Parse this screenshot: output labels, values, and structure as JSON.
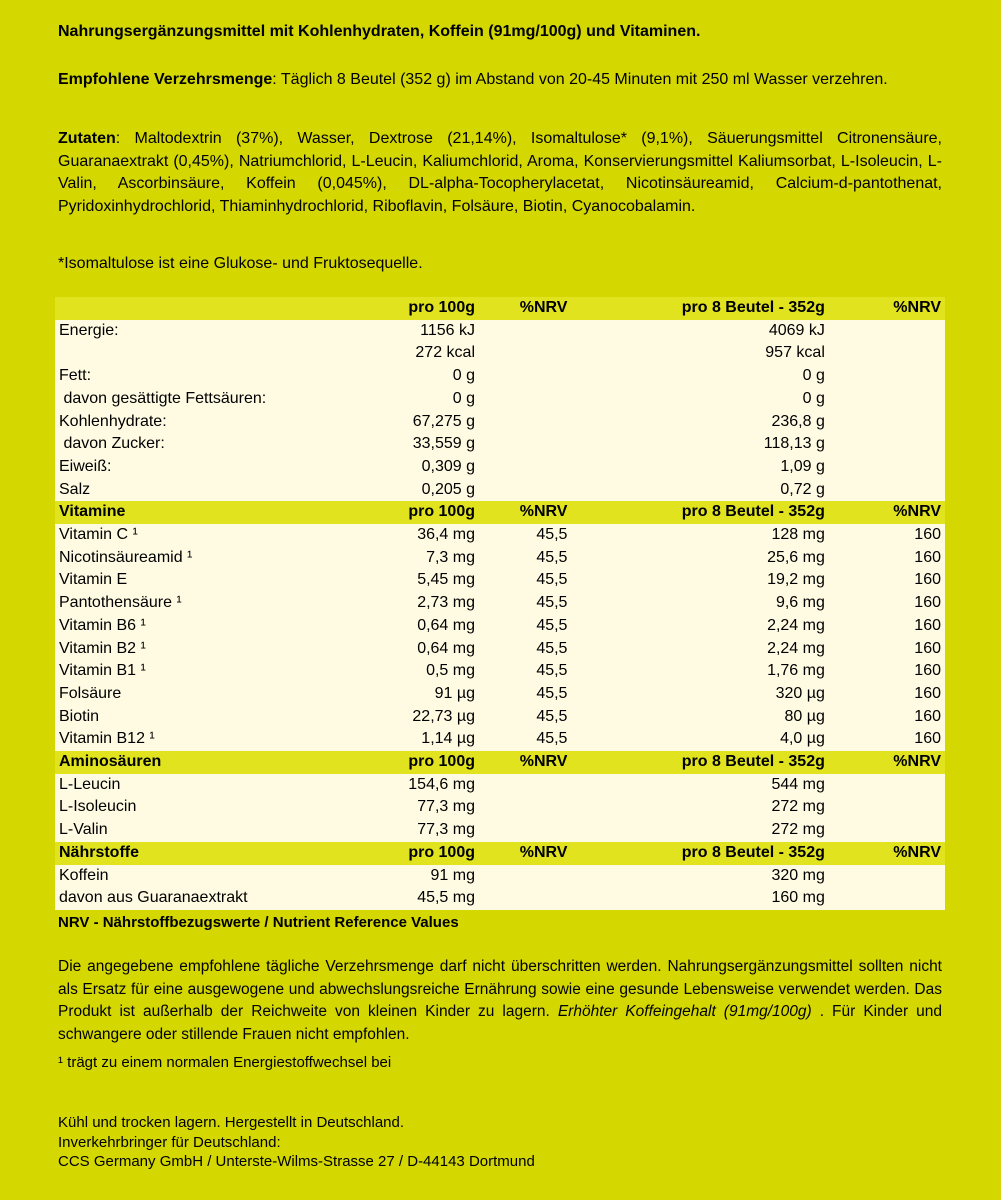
{
  "title": "Nahrungsergänzungsmittel mit Kohlenhydraten, Koffein (91mg/100g) und Vitaminen.",
  "dosage": {
    "label": "Empfohlene Verzehrsmenge",
    "text": ": Täglich 8 Beutel (352 g) im Abstand von 20-45 Minuten mit 250 ml Wasser verzehren."
  },
  "ingredients": {
    "label": "Zutaten",
    "text": ": Maltodextrin (37%), Wasser, Dextrose (21,14%), Isomaltulose* (9,1%), Säuerungsmittel Citronensäure, Guaranaextrakt (0,45%), Natriumchlorid, L-Leucin, Kaliumchlorid, Aroma, Konservierungsmittel Kaliumsorbat, L-Isoleucin, L-Valin, Ascorbinsäure, Koffein (0,045%), DL-alpha-Tocopherylacetat, Nicotinsäureamid, Calcium-d-pantothenat, Pyridoxinhydrochlorid, Thiaminhydrochlorid, Riboflavin, Folsäure, Biotin, Cyanocobalamin."
  },
  "footnote_isomaltulose": "*Isomaltulose ist eine Glukose- und Fruktosequelle.",
  "table": {
    "sections": [
      {
        "header": [
          "",
          "pro 100g",
          "%NRV",
          "pro 8 Beutel - 352g",
          "%NRV"
        ],
        "rows": [
          [
            "Energie:",
            "1156 kJ",
            "",
            "4069 kJ",
            ""
          ],
          [
            "",
            "272 kcal",
            "",
            "957 kcal",
            ""
          ],
          [
            "Fett:",
            "0 g",
            "",
            "0 g",
            ""
          ],
          [
            " davon gesättigte Fettsäuren:",
            "0 g",
            "",
            "0 g",
            ""
          ],
          [
            "Kohlenhydrate:",
            "67,275 g",
            "",
            "236,8 g",
            ""
          ],
          [
            " davon Zucker:",
            "33,559 g",
            "",
            "118,13 g",
            ""
          ],
          [
            "Eiweiß:",
            "0,309 g",
            "",
            "1,09 g",
            ""
          ],
          [
            "Salz",
            "0,205 g",
            "",
            "0,72 g",
            ""
          ]
        ]
      },
      {
        "header": [
          "Vitamine",
          "pro 100g",
          "%NRV",
          "pro 8 Beutel - 352g",
          "%NRV"
        ],
        "rows": [
          [
            "Vitamin C ¹",
            "36,4 mg",
            "45,5",
            "128 mg",
            "160"
          ],
          [
            "Nicotinsäureamid ¹",
            "7,3 mg",
            "45,5",
            "25,6 mg",
            "160"
          ],
          [
            "Vitamin E",
            "5,45 mg",
            "45,5",
            "19,2 mg",
            "160"
          ],
          [
            "Pantothensäure ¹",
            "2,73 mg",
            "45,5",
            "9,6 mg",
            "160"
          ],
          [
            "Vitamin B6 ¹",
            "0,64 mg",
            "45,5",
            "2,24 mg",
            "160"
          ],
          [
            "Vitamin B2 ¹",
            "0,64 mg",
            "45,5",
            "2,24 mg",
            "160"
          ],
          [
            "Vitamin B1 ¹",
            "0,5 mg",
            "45,5",
            "1,76 mg",
            "160"
          ],
          [
            "Folsäure",
            "91 µg",
            "45,5",
            "320 µg",
            "160"
          ],
          [
            "Biotin",
            "22,73 µg",
            "45,5",
            "80 µg",
            "160"
          ],
          [
            "Vitamin B12 ¹",
            "1,14 µg",
            "45,5",
            "4,0 µg",
            "160"
          ]
        ]
      },
      {
        "header": [
          "Aminosäuren",
          "pro 100g",
          "%NRV",
          "pro 8 Beutel - 352g",
          "%NRV"
        ],
        "rows": [
          [
            "L-Leucin",
            "154,6 mg",
            "",
            "544 mg",
            ""
          ],
          [
            "L-Isoleucin",
            "77,3 mg",
            "",
            "272 mg",
            ""
          ],
          [
            "L-Valin",
            "77,3 mg",
            "",
            "272 mg",
            ""
          ]
        ]
      },
      {
        "header": [
          "Nährstoffe",
          "pro 100g",
          "%NRV",
          "pro 8 Beutel - 352g",
          "%NRV"
        ],
        "rows": [
          [
            "Koffein",
            "91 mg",
            "",
            "320 mg",
            ""
          ],
          [
            "davon aus Guaranaextrakt",
            "45,5 mg",
            "",
            "160 mg",
            ""
          ]
        ]
      }
    ]
  },
  "nrv_note": "NRV - Nährstoffbezugswerte / Nutrient Reference Values",
  "warning": {
    "text": "Die angegebene empfohlene tägliche Verzehrsmenge darf nicht überschritten werden. Nahrungsergänzungsmittel sollten nicht als Ersatz für eine ausgewogene und abwechslungsreiche Ernährung sowie eine gesunde Lebensweise verwendet werden. Das Produkt ist außerhalb der Reichweite von kleinen Kinder zu lagern. ",
    "italic": "Erhöhter Koffeingehalt (91mg/100g)",
    "tail": " . Für Kinder und schwangere oder stillende Frauen nicht empfohlen."
  },
  "footnote_energy": "¹ trägt zu einem normalen Energiestoffwechsel bei",
  "footer": [
    "Kühl und trocken lagern. Hergestellt in Deutschland.",
    "Inverkehrbringer für Deutschland:",
    "CCS Germany GmbH / Unterste-Wilms-Strasse 27 / D-44143 Dortmund"
  ],
  "colors": {
    "background": "#d4d800",
    "header_row": "#e1e31f",
    "row": "#fffbe3"
  }
}
